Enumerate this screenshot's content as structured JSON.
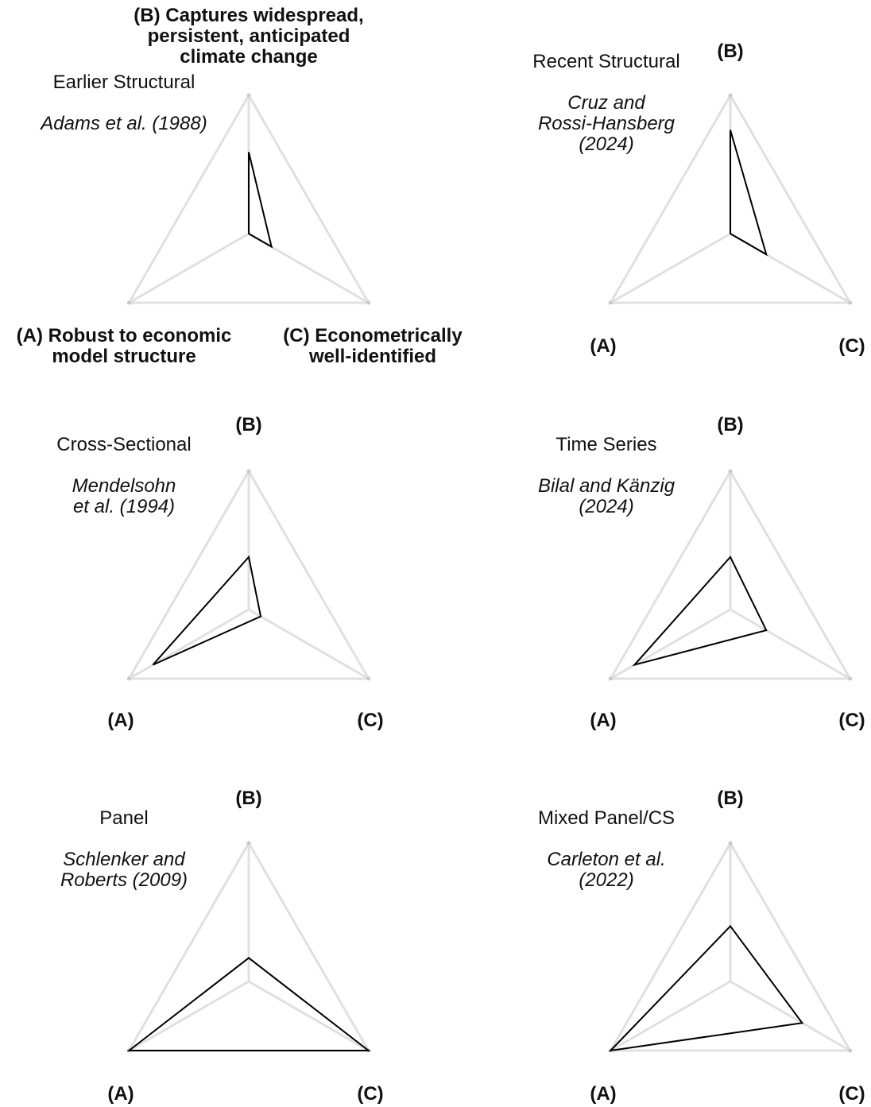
{
  "chart_data": [
    {
      "type": "radar",
      "title": "Earlier Structural",
      "reference": [
        "Adams et al. (1988)"
      ],
      "axes": [
        {
          "key": "A",
          "label": [
            "(A) Robust to economic",
            "model structure"
          ]
        },
        {
          "key": "B",
          "label": [
            "(B) Captures widespread,",
            "persistent, anticipated",
            "climate change"
          ]
        },
        {
          "key": "C",
          "label": [
            "(C) Econometrically",
            "well-identified"
          ]
        }
      ],
      "values": {
        "A": 0.0,
        "B": 0.59,
        "C": 0.19
      },
      "range": [
        0,
        1
      ]
    },
    {
      "type": "radar",
      "title": "Recent Structural",
      "reference": [
        "Cruz and",
        "Rossi-Hansberg",
        "(2024)"
      ],
      "axes": [
        {
          "key": "A",
          "label": [
            "(A)"
          ]
        },
        {
          "key": "B",
          "label": [
            "(B)"
          ]
        },
        {
          "key": "C",
          "label": [
            "(C)"
          ]
        }
      ],
      "values": {
        "A": 0.0,
        "B": 0.75,
        "C": 0.3
      },
      "range": [
        0,
        1
      ]
    },
    {
      "type": "radar",
      "title": "Cross-Sectional",
      "reference": [
        "Mendelsohn",
        "et al. (1994)"
      ],
      "axes": [
        {
          "key": "A",
          "label": [
            "(A)"
          ]
        },
        {
          "key": "B",
          "label": [
            "(B)"
          ]
        },
        {
          "key": "C",
          "label": [
            "(C)"
          ]
        }
      ],
      "values": {
        "A": 0.8,
        "B": 0.38,
        "C": 0.1
      },
      "range": [
        0,
        1
      ]
    },
    {
      "type": "radar",
      "title": "Time Series",
      "reference": [
        "Bilal and Känzig",
        "(2024)"
      ],
      "axes": [
        {
          "key": "A",
          "label": [
            "(A)"
          ]
        },
        {
          "key": "B",
          "label": [
            "(B)"
          ]
        },
        {
          "key": "C",
          "label": [
            "(C)"
          ]
        }
      ],
      "values": {
        "A": 0.8,
        "B": 0.38,
        "C": 0.3
      },
      "range": [
        0,
        1
      ]
    },
    {
      "type": "radar",
      "title": "Panel",
      "reference": [
        "Schlenker and",
        "Roberts (2009)"
      ],
      "axes": [
        {
          "key": "A",
          "label": [
            "(A)"
          ]
        },
        {
          "key": "B",
          "label": [
            "(B)"
          ]
        },
        {
          "key": "C",
          "label": [
            "(C)"
          ]
        }
      ],
      "values": {
        "A": 1.0,
        "B": 0.17,
        "C": 1.0
      },
      "range": [
        0,
        1
      ]
    },
    {
      "type": "radar",
      "title": "Mixed Panel/CS",
      "reference": [
        "Carleton et al.",
        "(2022)"
      ],
      "axes": [
        {
          "key": "A",
          "label": [
            "(A)"
          ]
        },
        {
          "key": "B",
          "label": [
            "(B)"
          ]
        },
        {
          "key": "C",
          "label": [
            "(C)"
          ]
        }
      ],
      "values": {
        "A": 1.0,
        "B": 0.4,
        "C": 0.6
      },
      "range": [
        0,
        1
      ]
    }
  ]
}
